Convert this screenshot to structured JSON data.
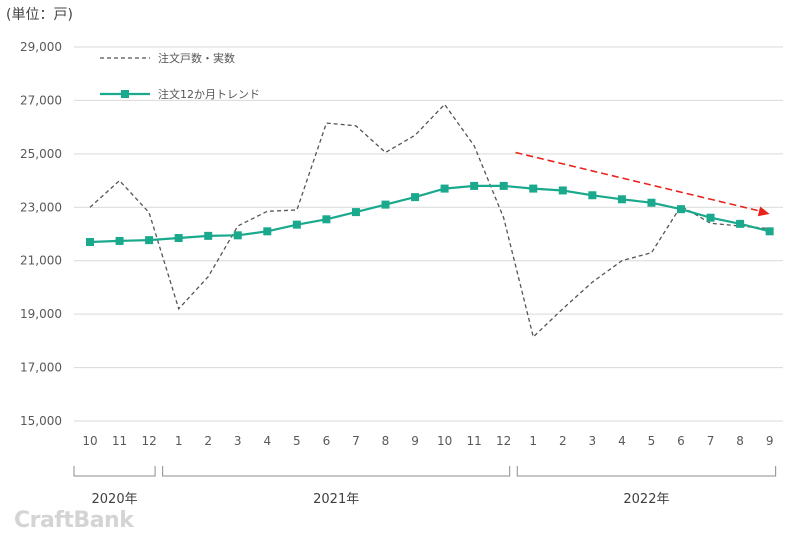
{
  "unit_label": "(単位：戸)",
  "watermark": "CraftBank",
  "chart_data": {
    "type": "line",
    "ylim": [
      15000,
      29000
    ],
    "yticks": [
      15000,
      17000,
      19000,
      21000,
      23000,
      25000,
      27000,
      29000
    ],
    "ytick_labels": [
      "15,000",
      "17,000",
      "19,000",
      "21,000",
      "23,000",
      "25,000",
      "27,000",
      "29,000"
    ],
    "categories": [
      "10",
      "11",
      "12",
      "1",
      "2",
      "3",
      "4",
      "5",
      "6",
      "7",
      "8",
      "9",
      "10",
      "11",
      "12",
      "1",
      "2",
      "3",
      "4",
      "5",
      "6",
      "7",
      "8",
      "9"
    ],
    "year_groups": [
      {
        "label": "2020年",
        "start": 0,
        "end": 2
      },
      {
        "label": "2021年",
        "start": 3,
        "end": 14
      },
      {
        "label": "2022年",
        "start": 15,
        "end": 23
      }
    ],
    "series": [
      {
        "name": "注文戸数・実数",
        "style": "dashed",
        "color": "#555555",
        "values": [
          23000,
          24000,
          22800,
          19200,
          20400,
          22300,
          22850,
          22900,
          26150,
          26050,
          25050,
          25700,
          26850,
          25300,
          22600,
          18150,
          19200,
          20200,
          21000,
          21300,
          23050,
          22400,
          22300,
          22200
        ]
      },
      {
        "name": "注文12か月トレンド",
        "style": "solid-marker",
        "color": "#1aa98d",
        "values": [
          21700,
          21740,
          21770,
          21850,
          21930,
          21950,
          22100,
          22350,
          22550,
          22820,
          23100,
          23380,
          23700,
          23800,
          23800,
          23700,
          23630,
          23450,
          23300,
          23170,
          22930,
          22610,
          22380,
          22100
        ]
      }
    ],
    "trend_arrow": {
      "color": "#e8231c",
      "from_index": 14.4,
      "from_value": 25050,
      "to_index": 23,
      "to_value": 22750
    },
    "grid": true,
    "legend_position": "top-left"
  }
}
